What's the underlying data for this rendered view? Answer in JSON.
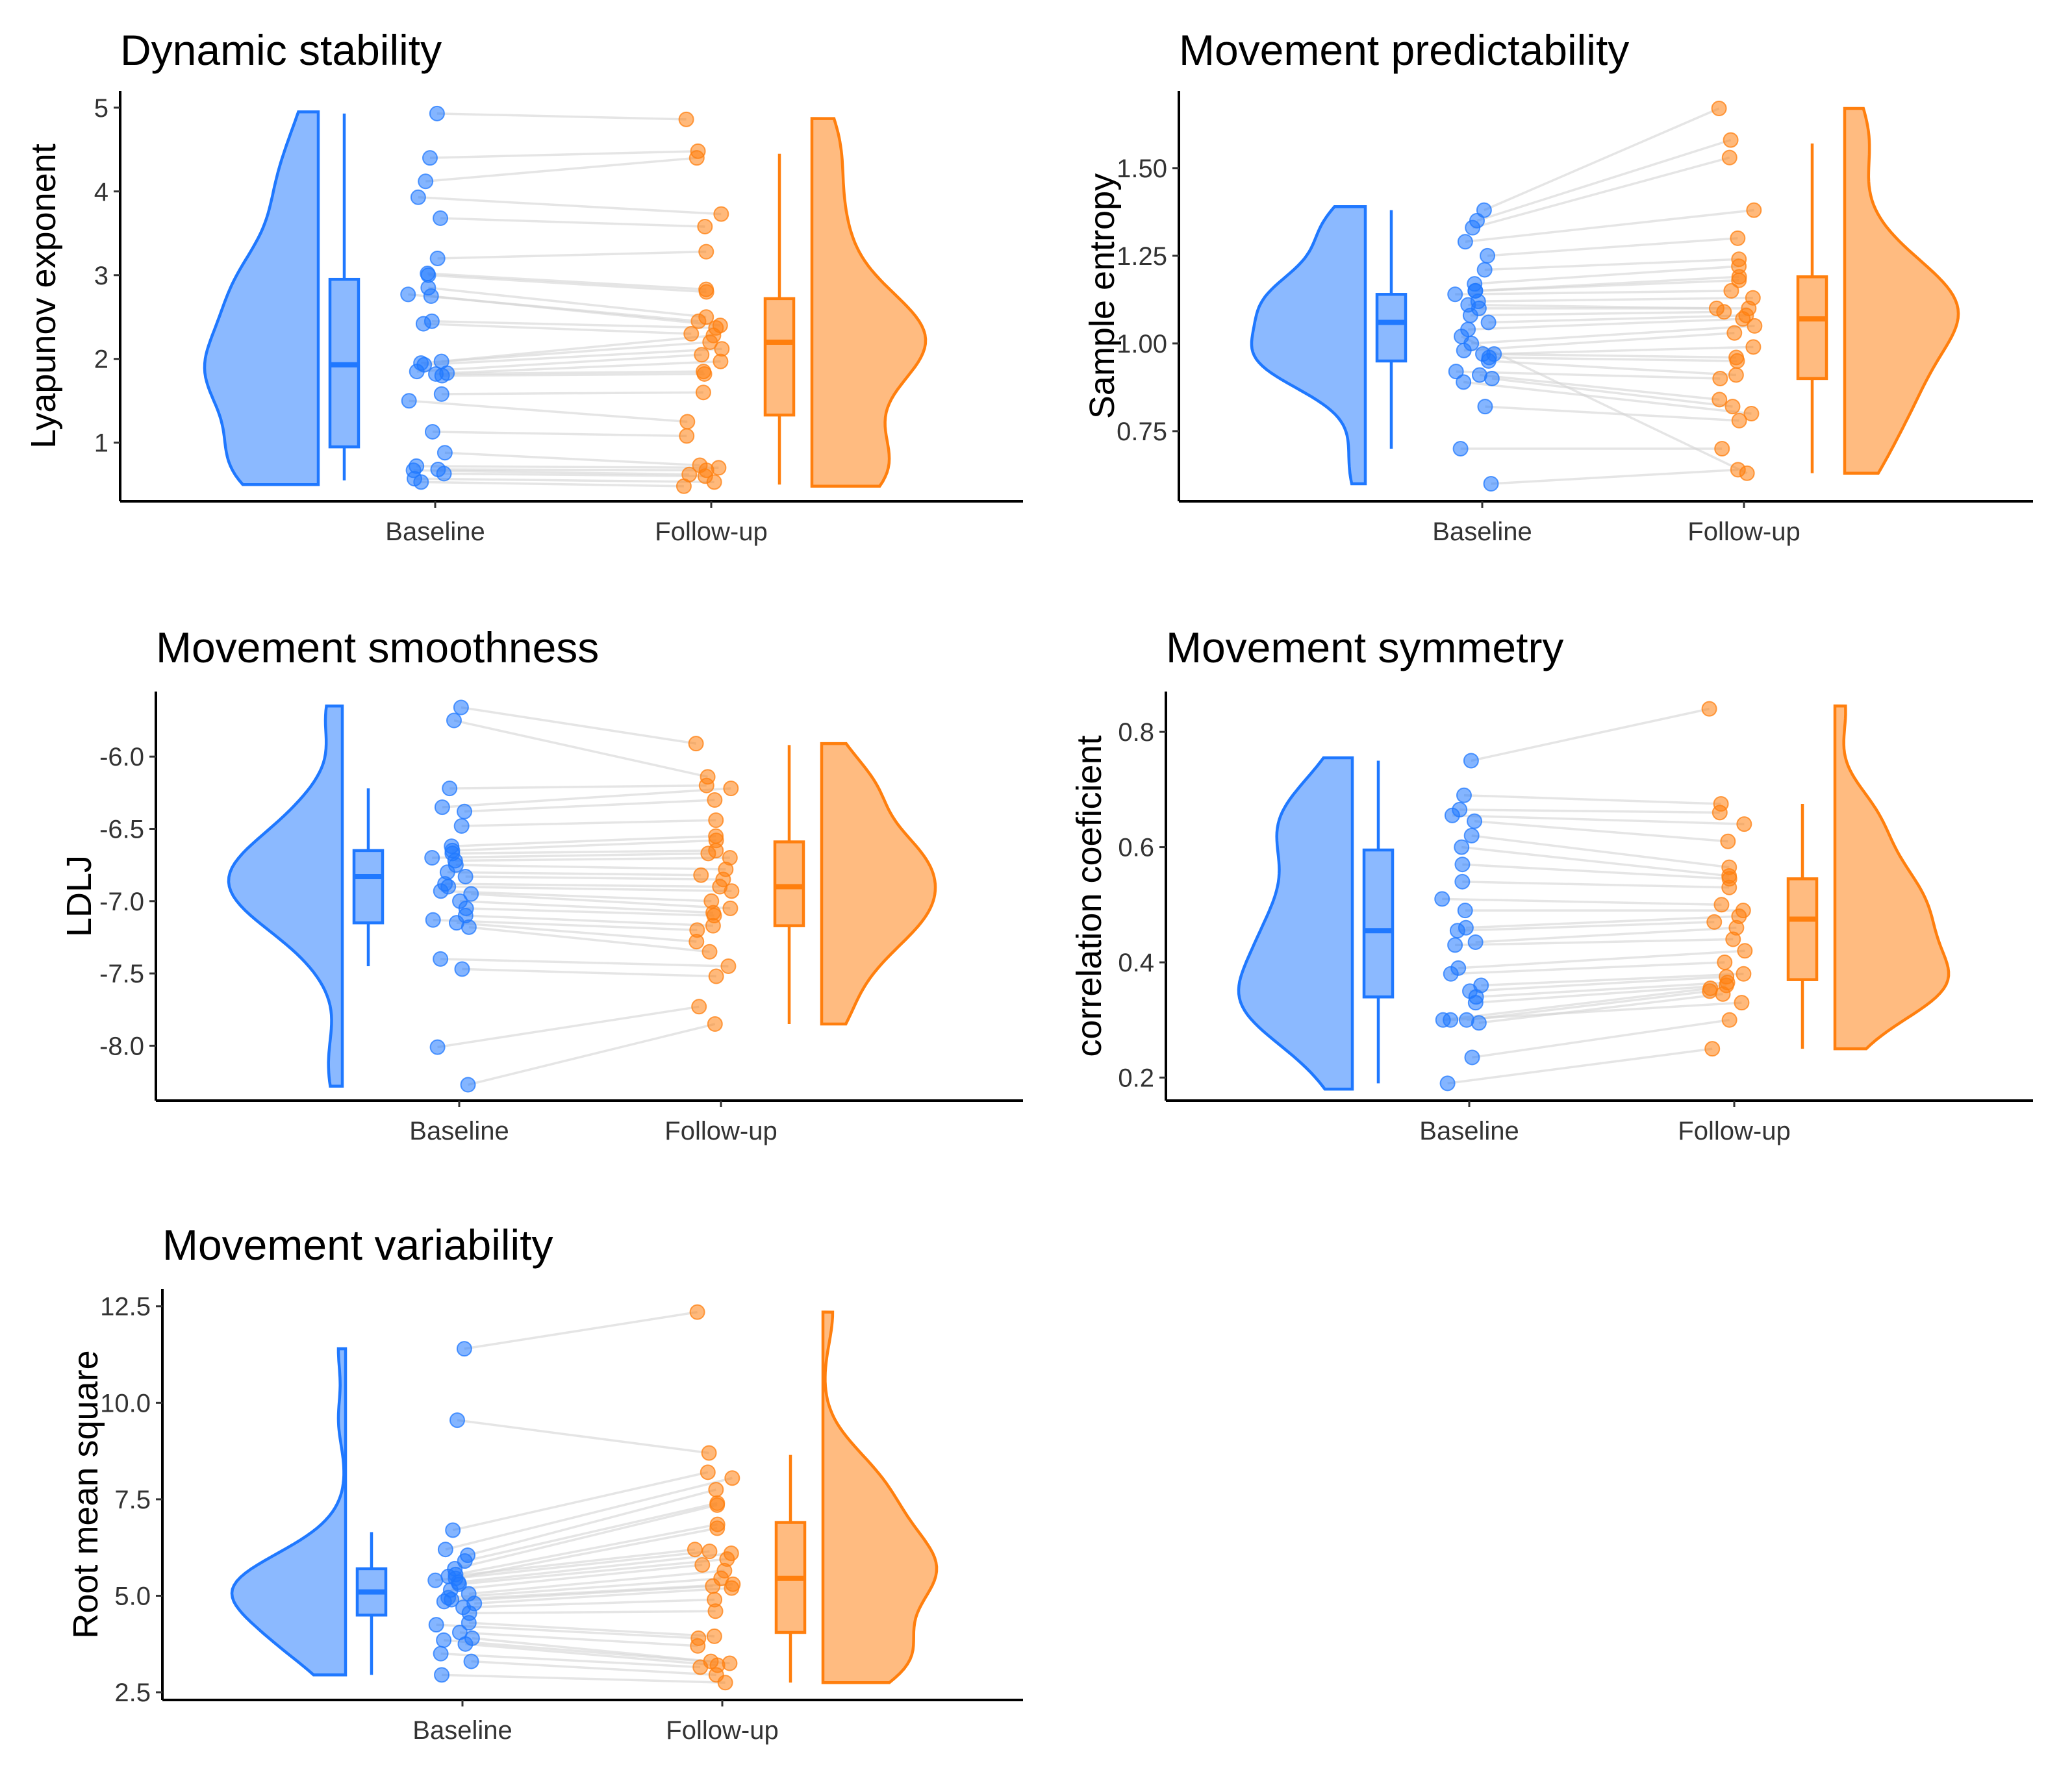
{
  "colors": {
    "baseline": "#1f78ff",
    "baseline_fill": "#8bb9ff",
    "followup": "#ff7f0e",
    "followup_fill": "#ffbb80",
    "pairline": "#d3d3d3"
  },
  "chart_data": [
    {
      "type": "raincloud",
      "title": "Dynamic stability",
      "ylabel": "Lyapunov exponent",
      "xlabel": "",
      "categories": [
        "Baseline",
        "Follow-up"
      ],
      "ylim": [
        0.3,
        5.2
      ],
      "yticks": [
        1,
        2,
        3,
        4,
        5
      ],
      "yticklabels": [
        "1",
        "2",
        "3",
        "4",
        "5"
      ],
      "box": [
        {
          "min": 0.55,
          "q1": 0.95,
          "median": 1.93,
          "q3": 2.95,
          "max": 4.93
        },
        {
          "min": 0.5,
          "q1": 1.33,
          "median": 2.2,
          "q3": 2.72,
          "max": 4.45
        }
      ],
      "density_range": [
        [
          0.5,
          4.95
        ],
        [
          0.48,
          4.87
        ]
      ],
      "pairs": [
        [
          4.93,
          4.86
        ],
        [
          4.4,
          4.48
        ],
        [
          4.12,
          4.4
        ],
        [
          3.93,
          3.73
        ],
        [
          3.68,
          3.58
        ],
        [
          3.2,
          3.28
        ],
        [
          3.02,
          2.83
        ],
        [
          3.0,
          2.8
        ],
        [
          2.85,
          2.5
        ],
        [
          2.77,
          2.45
        ],
        [
          2.75,
          2.4
        ],
        [
          2.45,
          2.37
        ],
        [
          2.42,
          2.3
        ],
        [
          1.97,
          2.28
        ],
        [
          1.95,
          2.2
        ],
        [
          1.93,
          2.12
        ],
        [
          1.85,
          2.05
        ],
        [
          1.83,
          1.97
        ],
        [
          1.82,
          1.85
        ],
        [
          1.8,
          1.82
        ],
        [
          1.58,
          1.6
        ],
        [
          1.5,
          1.25
        ],
        [
          1.13,
          1.08
        ],
        [
          0.88,
          0.73
        ],
        [
          0.72,
          0.7
        ],
        [
          0.68,
          0.67
        ],
        [
          0.67,
          0.62
        ],
        [
          0.63,
          0.6
        ],
        [
          0.57,
          0.53
        ],
        [
          0.53,
          0.48
        ]
      ]
    },
    {
      "type": "raincloud",
      "title": "Movement predictability",
      "ylabel": "Sample entropy",
      "xlabel": "",
      "categories": [
        "Baseline",
        "Follow-up"
      ],
      "ylim": [
        0.55,
        1.72
      ],
      "yticks": [
        0.75,
        1.0,
        1.25,
        1.5
      ],
      "yticklabels": [
        "0.75",
        "1.00",
        "1.25",
        "1.50"
      ],
      "box": [
        {
          "min": 0.7,
          "q1": 0.95,
          "median": 1.06,
          "q3": 1.14,
          "max": 1.38
        },
        {
          "min": 0.63,
          "q1": 0.9,
          "median": 1.07,
          "q3": 1.19,
          "max": 1.57
        }
      ],
      "density_range": [
        [
          0.6,
          1.39
        ],
        [
          0.63,
          1.67
        ]
      ],
      "pairs": [
        [
          1.38,
          1.67
        ],
        [
          1.35,
          1.58
        ],
        [
          1.33,
          1.53
        ],
        [
          1.29,
          1.38
        ],
        [
          1.25,
          1.3
        ],
        [
          1.21,
          1.24
        ],
        [
          1.17,
          1.22
        ],
        [
          1.15,
          1.19
        ],
        [
          1.15,
          1.18
        ],
        [
          1.14,
          1.15
        ],
        [
          1.12,
          1.13
        ],
        [
          1.1,
          1.1
        ],
        [
          1.08,
          1.09
        ],
        [
          1.06,
          1.08
        ],
        [
          1.04,
          1.07
        ],
        [
          1.0,
          1.05
        ],
        [
          0.98,
          1.03
        ],
        [
          0.97,
          0.99
        ],
        [
          0.97,
          0.96
        ],
        [
          0.96,
          0.95
        ],
        [
          0.95,
          0.91
        ],
        [
          0.92,
          0.9
        ],
        [
          0.91,
          0.84
        ],
        [
          0.9,
          0.82
        ],
        [
          0.89,
          0.8
        ],
        [
          0.82,
          0.78
        ],
        [
          0.7,
          0.7
        ],
        [
          0.6,
          0.64
        ],
        [
          1.02,
          0.63
        ],
        [
          1.11,
          1.1
        ]
      ]
    },
    {
      "type": "raincloud",
      "title": "Movement smoothness",
      "ylabel": "LDLJ",
      "xlabel": "",
      "categories": [
        "Baseline",
        "Follow-up"
      ],
      "ylim": [
        -8.38,
        -5.55
      ],
      "yticks": [
        -8.0,
        -7.5,
        -7.0,
        -6.5,
        -6.0
      ],
      "yticklabels": [
        "-8.0",
        "-7.5",
        "-7.0",
        "-6.5",
        "-6.0"
      ],
      "box": [
        {
          "min": -7.45,
          "q1": -7.15,
          "median": -6.83,
          "q3": -6.65,
          "max": -6.22
        },
        {
          "min": -7.85,
          "q1": -7.17,
          "median": -6.9,
          "q3": -6.59,
          "max": -5.92
        }
      ],
      "density_range": [
        [
          -8.28,
          -5.65
        ],
        [
          -7.85,
          -5.91
        ]
      ],
      "pairs": [
        [
          -5.66,
          -5.91
        ],
        [
          -5.75,
          -6.14
        ],
        [
          -6.22,
          -6.2
        ],
        [
          -6.35,
          -6.22
        ],
        [
          -6.38,
          -6.3
        ],
        [
          -6.48,
          -6.44
        ],
        [
          -6.62,
          -6.55
        ],
        [
          -6.65,
          -6.58
        ],
        [
          -6.67,
          -6.65
        ],
        [
          -6.7,
          -6.67
        ],
        [
          -6.72,
          -6.7
        ],
        [
          -6.75,
          -6.78
        ],
        [
          -6.8,
          -6.82
        ],
        [
          -6.83,
          -6.85
        ],
        [
          -6.88,
          -6.9
        ],
        [
          -6.9,
          -6.93
        ],
        [
          -6.93,
          -7.0
        ],
        [
          -6.95,
          -7.05
        ],
        [
          -7.0,
          -7.08
        ],
        [
          -7.05,
          -7.1
        ],
        [
          -7.1,
          -7.17
        ],
        [
          -7.13,
          -7.2
        ],
        [
          -7.15,
          -7.28
        ],
        [
          -7.18,
          -7.35
        ],
        [
          -7.4,
          -7.45
        ],
        [
          -7.47,
          -7.52
        ],
        [
          -8.01,
          -7.73
        ],
        [
          -8.27,
          -7.85
        ]
      ]
    },
    {
      "type": "raincloud",
      "title": "Movement symmetry",
      "ylabel": "correlation coeficient",
      "xlabel": "",
      "categories": [
        "Baseline",
        "Follow-up"
      ],
      "ylim": [
        0.16,
        0.87
      ],
      "yticks": [
        0.2,
        0.4,
        0.6,
        0.8
      ],
      "yticklabels": [
        "0.2",
        "0.4",
        "0.6",
        "0.8"
      ],
      "box": [
        {
          "min": 0.19,
          "q1": 0.34,
          "median": 0.455,
          "q3": 0.595,
          "max": 0.75
        },
        {
          "min": 0.25,
          "q1": 0.37,
          "median": 0.475,
          "q3": 0.545,
          "max": 0.675
        }
      ],
      "density_range": [
        [
          0.18,
          0.755
        ],
        [
          0.25,
          0.845
        ]
      ],
      "pairs": [
        [
          0.75,
          0.84
        ],
        [
          0.69,
          0.675
        ],
        [
          0.665,
          0.66
        ],
        [
          0.655,
          0.64
        ],
        [
          0.645,
          0.61
        ],
        [
          0.62,
          0.565
        ],
        [
          0.6,
          0.55
        ],
        [
          0.57,
          0.545
        ],
        [
          0.54,
          0.53
        ],
        [
          0.51,
          0.5
        ],
        [
          0.49,
          0.49
        ],
        [
          0.46,
          0.48
        ],
        [
          0.455,
          0.47
        ],
        [
          0.435,
          0.46
        ],
        [
          0.43,
          0.44
        ],
        [
          0.39,
          0.42
        ],
        [
          0.38,
          0.4
        ],
        [
          0.36,
          0.38
        ],
        [
          0.35,
          0.375
        ],
        [
          0.34,
          0.365
        ],
        [
          0.33,
          0.36
        ],
        [
          0.3,
          0.355
        ],
        [
          0.3,
          0.35
        ],
        [
          0.295,
          0.345
        ],
        [
          0.3,
          0.33
        ],
        [
          0.235,
          0.3
        ],
        [
          0.19,
          0.25
        ]
      ]
    },
    {
      "type": "raincloud",
      "title": "Movement variability",
      "ylabel": "Root mean square",
      "xlabel": "",
      "categories": [
        "Baseline",
        "Follow-up"
      ],
      "ylim": [
        2.3,
        12.95
      ],
      "yticks": [
        2.5,
        5.0,
        7.5,
        10.0,
        12.5
      ],
      "yticklabels": [
        "2.5",
        "5.0",
        "7.5",
        "10.0",
        "12.5"
      ],
      "box": [
        {
          "min": 2.95,
          "q1": 4.5,
          "median": 5.1,
          "q3": 5.7,
          "max": 6.65
        },
        {
          "min": 2.75,
          "q1": 4.05,
          "median": 5.45,
          "q3": 6.9,
          "max": 8.65
        }
      ],
      "density_range": [
        [
          2.95,
          11.4
        ],
        [
          2.75,
          12.35
        ]
      ],
      "pairs": [
        [
          11.4,
          12.35
        ],
        [
          9.55,
          8.7
        ],
        [
          6.7,
          8.2
        ],
        [
          6.2,
          8.05
        ],
        [
          6.05,
          7.75
        ],
        [
          5.9,
          7.4
        ],
        [
          5.7,
          7.35
        ],
        [
          5.55,
          6.85
        ],
        [
          5.45,
          6.75
        ],
        [
          5.4,
          6.15
        ],
        [
          5.35,
          6.1
        ],
        [
          5.3,
          5.95
        ],
        [
          5.15,
          5.8
        ],
        [
          5.05,
          5.65
        ],
        [
          4.95,
          5.45
        ],
        [
          4.9,
          5.3
        ],
        [
          4.85,
          5.25
        ],
        [
          4.8,
          5.2
        ],
        [
          4.7,
          4.9
        ],
        [
          4.55,
          4.6
        ],
        [
          4.3,
          3.95
        ],
        [
          4.25,
          3.9
        ],
        [
          4.05,
          3.7
        ],
        [
          3.9,
          3.3
        ],
        [
          3.85,
          3.25
        ],
        [
          3.75,
          3.2
        ],
        [
          3.5,
          3.15
        ],
        [
          3.3,
          2.95
        ],
        [
          2.95,
          2.75
        ],
        [
          5.5,
          6.2
        ]
      ]
    }
  ]
}
